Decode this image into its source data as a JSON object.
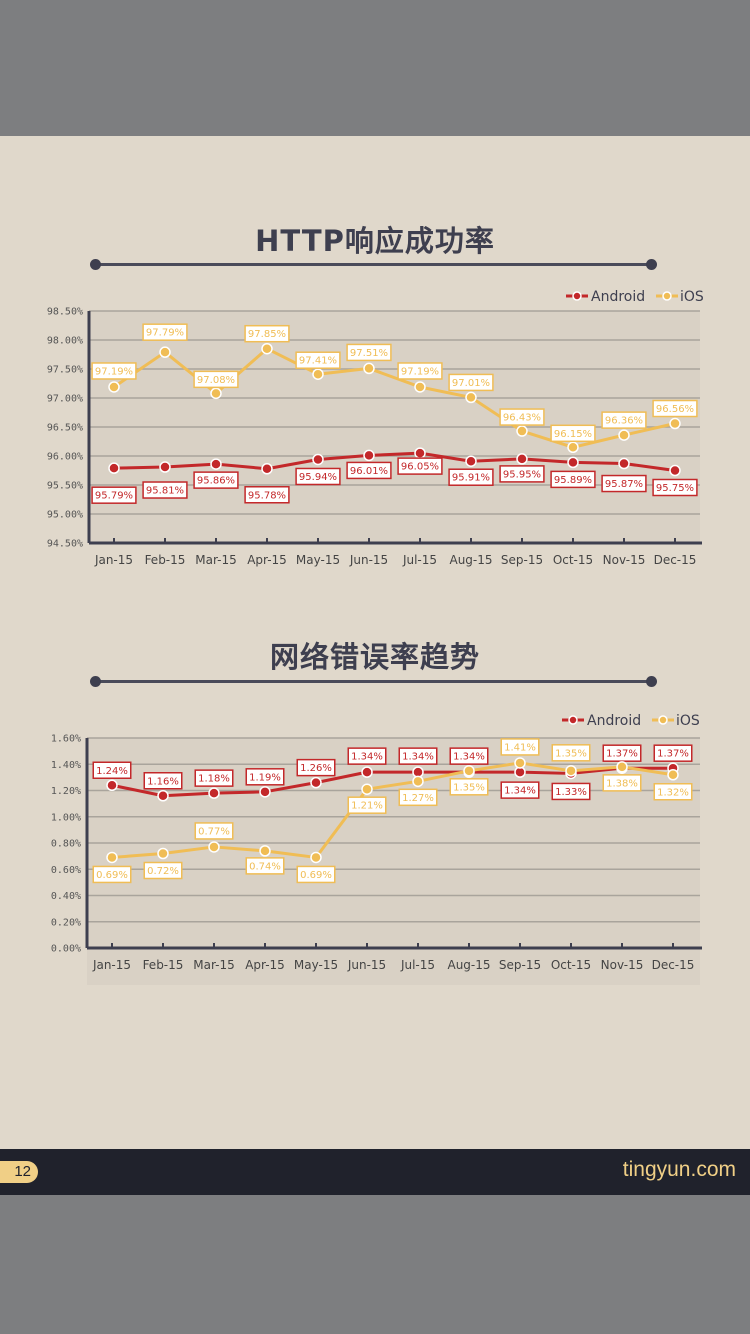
{
  "colors": {
    "android": "#c3282a",
    "ios": "#f0bd55",
    "axis": "#3e3f4f",
    "grid": "#a9a49c",
    "plot_bg": "#d9d1c5",
    "page_bg": "#e0d8cb"
  },
  "footer": {
    "page_number": "12",
    "brand": "tingyun.com"
  },
  "legend": {
    "android": "Android",
    "ios": "iOS"
  },
  "chart_data": [
    {
      "type": "line",
      "title": "HTTP响应成功率",
      "xlabel": "",
      "ylabel": "",
      "categories": [
        "Jan-15",
        "Feb-15",
        "Mar-15",
        "Apr-15",
        "May-15",
        "Jun-15",
        "Jul-15",
        "Aug-15",
        "Sep-15",
        "Oct-15",
        "Nov-15",
        "Dec-15"
      ],
      "yticks": [
        "98.50%",
        "98.00%",
        "97.50%",
        "97.00%",
        "96.50%",
        "96.00%",
        "95.50%",
        "95.00%",
        "94.50%"
      ],
      "ylim": [
        94.5,
        98.5
      ],
      "grid": true,
      "legend_position": "top-right",
      "series": [
        {
          "name": "Android",
          "values": [
            95.79,
            95.81,
            95.86,
            95.78,
            95.94,
            96.01,
            96.05,
            95.91,
            95.95,
            95.89,
            95.87,
            95.75
          ],
          "labels": [
            "95.79%",
            "95.81%",
            "95.86%",
            "95.78%",
            "95.94%",
            "96.01%",
            "96.05%",
            "95.91%",
            "95.95%",
            "95.89%",
            "95.87%",
            "95.75%"
          ]
        },
        {
          "name": "iOS",
          "values": [
            97.19,
            97.79,
            97.08,
            97.85,
            97.41,
            97.51,
            97.19,
            97.01,
            96.43,
            96.15,
            96.36,
            96.56
          ],
          "labels": [
            "97.19%",
            "97.79%",
            "97.08%",
            "97.85%",
            "97.41%",
            "97.51%",
            "97.19%",
            "97.01%",
            "96.43%",
            "96.15%",
            "96.36%",
            "96.56%"
          ]
        }
      ]
    },
    {
      "type": "line",
      "title": "网络错误率趋势",
      "xlabel": "",
      "ylabel": "",
      "categories": [
        "Jan-15",
        "Feb-15",
        "Mar-15",
        "Apr-15",
        "May-15",
        "Jun-15",
        "Jul-15",
        "Aug-15",
        "Sep-15",
        "Oct-15",
        "Nov-15",
        "Dec-15"
      ],
      "yticks": [
        "1.60%",
        "1.40%",
        "1.20%",
        "1.00%",
        "0.80%",
        "0.60%",
        "0.40%",
        "0.20%",
        "0.00%"
      ],
      "ylim": [
        0,
        1.6
      ],
      "grid": true,
      "legend_position": "top-right",
      "series": [
        {
          "name": "Android",
          "values": [
            1.24,
            1.16,
            1.18,
            1.19,
            1.26,
            1.34,
            1.34,
            1.34,
            1.34,
            1.33,
            1.37,
            1.37
          ],
          "labels": [
            "1.24%",
            "1.16%",
            "1.18%",
            "1.19%",
            "1.26%",
            "1.34%",
            "1.34%",
            "1.34%",
            "1.34%",
            "1.33%",
            "1.37%",
            "1.37%"
          ]
        },
        {
          "name": "iOS",
          "values": [
            0.69,
            0.72,
            0.77,
            0.74,
            0.69,
            1.21,
            1.27,
            1.35,
            1.41,
            1.35,
            1.38,
            1.32
          ],
          "labels": [
            "0.69%",
            "0.72%",
            "0.77%",
            "0.74%",
            "0.69%",
            "1.21%",
            "1.27%",
            "1.35%",
            "1.41%",
            "1.35%",
            "1.38%",
            "1.32%"
          ]
        }
      ]
    }
  ]
}
